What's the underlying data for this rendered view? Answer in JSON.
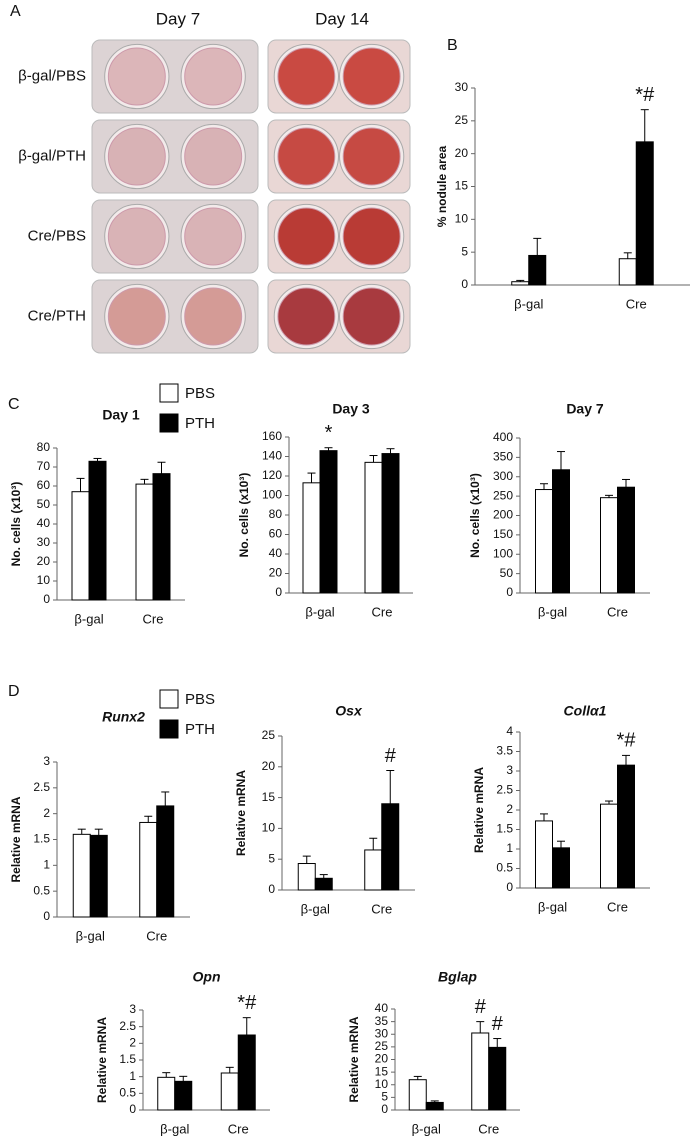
{
  "panel_labels": [
    "A",
    "B",
    "C",
    "D"
  ],
  "panel_a": {
    "columns": [
      "Day 7",
      "Day 14"
    ],
    "rows": [
      "β-gal/PBS",
      "β-gal/PTH",
      "Cre/PBS",
      "Cre/PTH"
    ]
  },
  "chart_data": [
    {
      "type": "bar",
      "ylabel": "% nodule area",
      "categories": [
        "β-gal",
        "Cre"
      ],
      "series": [
        {
          "color": "#ffffff",
          "values": [
            0.5,
            4.0
          ],
          "errors": [
            0.2,
            0.9
          ]
        },
        {
          "color": "#000000",
          "values": [
            4.5,
            21.8
          ],
          "errors": [
            2.6,
            4.9
          ]
        }
      ],
      "ylim": [
        0,
        30
      ],
      "yticks": [
        0,
        5,
        10,
        15,
        20,
        25,
        30
      ],
      "annotations": [
        {
          "text": "*#",
          "series": 1,
          "category": 1
        }
      ]
    },
    {
      "type": "bar",
      "title": "Day 1",
      "ylabel": "No. cells (x10³)",
      "categories": [
        "β-gal",
        "Cre"
      ],
      "legend": true,
      "series": [
        {
          "name": "PBS",
          "color": "#ffffff",
          "values": [
            57,
            61
          ],
          "errors": [
            7,
            2.5
          ]
        },
        {
          "name": "PTH",
          "color": "#000000",
          "values": [
            73,
            66.5
          ],
          "errors": [
            1.5,
            6
          ]
        }
      ],
      "ylim": [
        0,
        80
      ],
      "yticks": [
        0,
        10,
        20,
        30,
        40,
        50,
        60,
        70,
        80
      ]
    },
    {
      "type": "bar",
      "title": "Day 3",
      "ylabel": "No. cells (x10³)",
      "categories": [
        "β-gal",
        "Cre"
      ],
      "series": [
        {
          "color": "#ffffff",
          "values": [
            113,
            134
          ],
          "errors": [
            10,
            7
          ]
        },
        {
          "color": "#000000",
          "values": [
            146,
            143
          ],
          "errors": [
            3,
            5
          ]
        }
      ],
      "ylim": [
        0,
        160
      ],
      "yticks": [
        0,
        20,
        40,
        60,
        80,
        100,
        120,
        140,
        160
      ],
      "annotations": [
        {
          "text": "*",
          "series": 1,
          "category": 0
        }
      ]
    },
    {
      "type": "bar",
      "title": "Day 7",
      "ylabel": "No. cells (x10³)",
      "categories": [
        "β-gal",
        "Cre"
      ],
      "series": [
        {
          "color": "#ffffff",
          "values": [
            267,
            246
          ],
          "errors": [
            15,
            6
          ]
        },
        {
          "color": "#000000",
          "values": [
            318,
            273
          ],
          "errors": [
            47,
            20
          ]
        }
      ],
      "ylim": [
        0,
        400
      ],
      "yticks": [
        0,
        50,
        100,
        150,
        200,
        250,
        300,
        350,
        400
      ]
    },
    {
      "type": "bar",
      "title": "Runx2",
      "ylabel": "Relative mRNA",
      "categories": [
        "β-gal",
        "Cre"
      ],
      "legend": true,
      "series": [
        {
          "name": "PBS",
          "color": "#ffffff",
          "values": [
            1.6,
            1.83
          ],
          "errors": [
            0.1,
            0.12
          ]
        },
        {
          "name": "PTH",
          "color": "#000000",
          "values": [
            1.58,
            2.15
          ],
          "errors": [
            0.12,
            0.27
          ]
        }
      ],
      "ylim": [
        0,
        3
      ],
      "yticks": [
        0,
        0.5,
        1,
        1.5,
        2,
        2.5,
        3
      ]
    },
    {
      "type": "bar",
      "title": "Osx",
      "ylabel": "Relative mRNA",
      "categories": [
        "β-gal",
        "Cre"
      ],
      "series": [
        {
          "color": "#ffffff",
          "values": [
            4.3,
            6.5
          ],
          "errors": [
            1.2,
            1.9
          ]
        },
        {
          "color": "#000000",
          "values": [
            1.9,
            14
          ],
          "errors": [
            0.6,
            5.4
          ]
        }
      ],
      "ylim": [
        0,
        25
      ],
      "yticks": [
        0,
        5,
        10,
        15,
        20,
        25
      ],
      "annotations": [
        {
          "text": "#",
          "series": 1,
          "category": 1
        }
      ]
    },
    {
      "type": "bar",
      "title": "Collα1",
      "ylabel": "Relative mRNA",
      "categories": [
        "β-gal",
        "Cre"
      ],
      "series": [
        {
          "color": "#ffffff",
          "values": [
            1.72,
            2.15
          ],
          "errors": [
            0.18,
            0.08
          ]
        },
        {
          "color": "#000000",
          "values": [
            1.03,
            3.15
          ],
          "errors": [
            0.17,
            0.25
          ]
        }
      ],
      "ylim": [
        0,
        4
      ],
      "yticks": [
        0,
        0.5,
        1,
        1.5,
        2,
        2.5,
        3,
        3.5,
        4
      ],
      "annotations": [
        {
          "text": "*#",
          "series": 1,
          "category": 1
        }
      ]
    },
    {
      "type": "bar",
      "title": "Opn",
      "ylabel": "Relative mRNA",
      "categories": [
        "β-gal",
        "Cre"
      ],
      "series": [
        {
          "color": "#ffffff",
          "values": [
            0.98,
            1.11
          ],
          "errors": [
            0.14,
            0.17
          ]
        },
        {
          "color": "#000000",
          "values": [
            0.86,
            2.25
          ],
          "errors": [
            0.15,
            0.52
          ]
        }
      ],
      "ylim": [
        0,
        3
      ],
      "yticks": [
        0,
        0.5,
        1,
        1.5,
        2,
        2.5,
        3
      ],
      "annotations": [
        {
          "text": "*#",
          "series": 1,
          "category": 1
        }
      ]
    },
    {
      "type": "bar",
      "title": "Bglap",
      "ylabel": "Relative mRNA",
      "categories": [
        "β-gal",
        "Cre"
      ],
      "series": [
        {
          "color": "#ffffff",
          "values": [
            12,
            30.5
          ],
          "errors": [
            1.3,
            4.5
          ]
        },
        {
          "color": "#000000",
          "values": [
            3,
            24.8
          ],
          "errors": [
            0.6,
            3.5
          ]
        }
      ],
      "ylim": [
        0,
        40
      ],
      "yticks": [
        0,
        5,
        10,
        15,
        20,
        25,
        30,
        35,
        40
      ],
      "annotations": [
        {
          "text": "#",
          "series": 0,
          "category": 1
        },
        {
          "text": "#",
          "series": 1,
          "category": 1
        }
      ]
    }
  ]
}
